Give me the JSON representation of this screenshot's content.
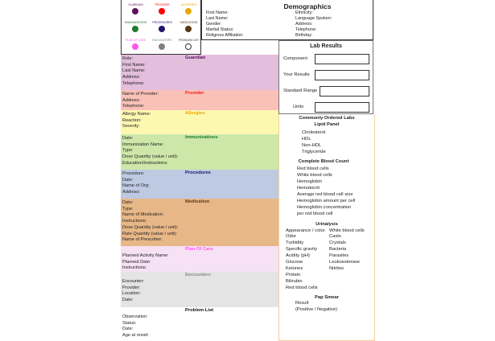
{
  "legend": {
    "items": [
      {
        "label": "GUARDIAN",
        "color": "#5c0f5e"
      },
      {
        "label": "PROVIDER",
        "color": "#ff0000"
      },
      {
        "label": "ALLERGIES",
        "color": "#e7a700"
      },
      {
        "label": "IMMUNIZATIONS",
        "color": "#1e7a2c"
      },
      {
        "label": "PROCEDURES",
        "color": "#1f1270"
      },
      {
        "label": "MEDICATION",
        "color": "#5a3716"
      },
      {
        "label": "PLAN OF CARE",
        "color": "#ff55ee"
      },
      {
        "label": "ENCOUNTERS",
        "color": "#808080"
      },
      {
        "label": "PROBLEM LIST",
        "color": "#ffffff"
      }
    ]
  },
  "demographics": {
    "title": "Demographics",
    "left": [
      "First Name:",
      "Last Name:",
      "Gender:",
      "Martial Status:",
      "Religious Affiliation:"
    ],
    "right": [
      "Ethnicity:",
      "Language Spoken:",
      "Address:",
      "Telephone:",
      "Birthday:"
    ]
  },
  "sections": [
    {
      "title": "Guardian",
      "title_color": "#5c0f5e",
      "bg": "#e3bedd",
      "fields": [
        "Role:",
        "First Name:",
        "Last Name:",
        "Address:",
        "Telephone:"
      ]
    },
    {
      "title": "Provider",
      "title_color": "#ff1a1a",
      "bg": "#f9c1b8",
      "fields": [
        "Name of Provider:",
        "Address:",
        "Telephone:"
      ]
    },
    {
      "title": "Allergies",
      "title_color": "#e7a700",
      "bg": "#fdf8b0",
      "fields": [
        "Allergy Name:",
        "Reaction:",
        "Severity:"
      ]
    },
    {
      "title": "Immunizations",
      "title_color": "#1e7a2c",
      "bg": "#cde7a9",
      "fields": [
        "Date:",
        "Immunization Name:",
        "Type:",
        "Dose Quantity (value / unit):",
        "Education/Instructions:"
      ]
    },
    {
      "title": "Procedures",
      "title_color": "#1f1270",
      "bg": "#bdcae2",
      "fields": [
        "Procedure:",
        "Date:",
        "Name of Org:",
        "Address:"
      ]
    },
    {
      "title": "Medication",
      "title_color": "#5a3716",
      "bg": "#e8b787",
      "fields": [
        "Date:",
        "Type:",
        "Name of Medication:",
        "Instructions:",
        "Dose Quantity (value / unit):",
        "Rate Quantity (value / unit):",
        "Name of Prescriber:"
      ]
    },
    {
      "title": "Plan Of Care",
      "title_color": "#ff55ee",
      "bg": "#f6e1f5",
      "fields": [
        "Planned Activity Name:",
        "Planned Date:",
        "Instructions:"
      ]
    },
    {
      "title": "Encounters",
      "title_color": "#888888",
      "bg": "#e4e4e4",
      "fields": [
        "Encounter:",
        "Provider:",
        "Location:",
        "Date:"
      ]
    },
    {
      "title": "Problem List",
      "title_color": "#111111",
      "bg": "#ffffff",
      "fields": [
        "Observation:",
        "Status:",
        "Date:",
        "Age at onset:"
      ]
    }
  ],
  "lab_results": {
    "title": "Lab Results",
    "fields": [
      "Component",
      "Your Results",
      "Standard Range",
      "Units"
    ]
  },
  "common_labs": {
    "title": "Commonly Ordered Labs",
    "lipid": {
      "title": "Lipid Panel",
      "items": [
        "Cholesterol",
        "HDL",
        "Non-HDL",
        "Triglyceride"
      ]
    },
    "cbc": {
      "title": "Complete Blood Count",
      "items": [
        "Red blood cells",
        "White blood cells",
        "Hemoglobin",
        "Hematocrit",
        "Average red blood cell size",
        "Hemoglobin amount per cell",
        "Hemoglobin concentration",
        "per red blood cell"
      ]
    },
    "urinalysis": {
      "title": "Urinalysis",
      "col1": [
        "Appearance / color",
        "Odor",
        "Turbidity",
        "Specific gravity",
        "Acidity (pH)",
        "Glucose",
        "Ketones",
        "Protein",
        "Bilirubin",
        "Red blood cells"
      ],
      "col2": [
        "White blood cells",
        "Casts",
        "Crystals",
        "Bacteria",
        "Parasites",
        "Leukoesterase",
        "Nitrites"
      ]
    },
    "pap": {
      "title": "Pap Smear",
      "items": [
        "Result",
        "(Positive / Negative)"
      ]
    }
  }
}
